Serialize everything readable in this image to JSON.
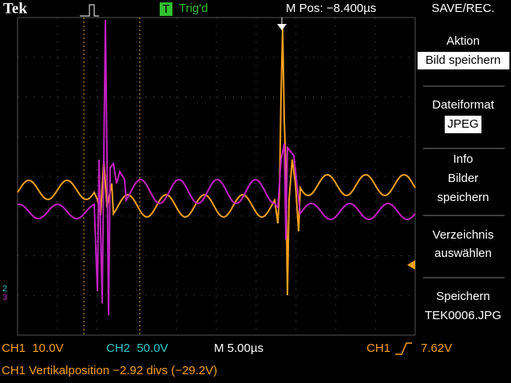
{
  "header": {
    "brand": "Tek",
    "status_icon": "T",
    "status": "Trig'd",
    "position": "M Pos: −8.400µs",
    "menu_title": "SAVE/REC."
  },
  "menu": [
    {
      "label": "Aktion",
      "value": "Bild speichern"
    },
    {
      "label": "Dateiformat",
      "value": "JPEG"
    },
    {
      "lines": [
        "Info",
        "Bilder",
        "speichern"
      ]
    },
    {
      "lines": [
        "Verzeichnis",
        "auswählen"
      ]
    },
    {
      "lines": [
        "Speichern",
        "TEK0006.JPG"
      ]
    }
  ],
  "markers": [
    "2",
    "3"
  ],
  "footer": {
    "ch1_scale": "CH1  10.0V",
    "ch2_scale": "CH2  50.0V",
    "timebase": "M 5.00µs",
    "trigger_source": "CH1",
    "trigger_level": "7.62V",
    "message": "CH1 Vertikalposition −2.92 divs (−29.2V)"
  }
}
